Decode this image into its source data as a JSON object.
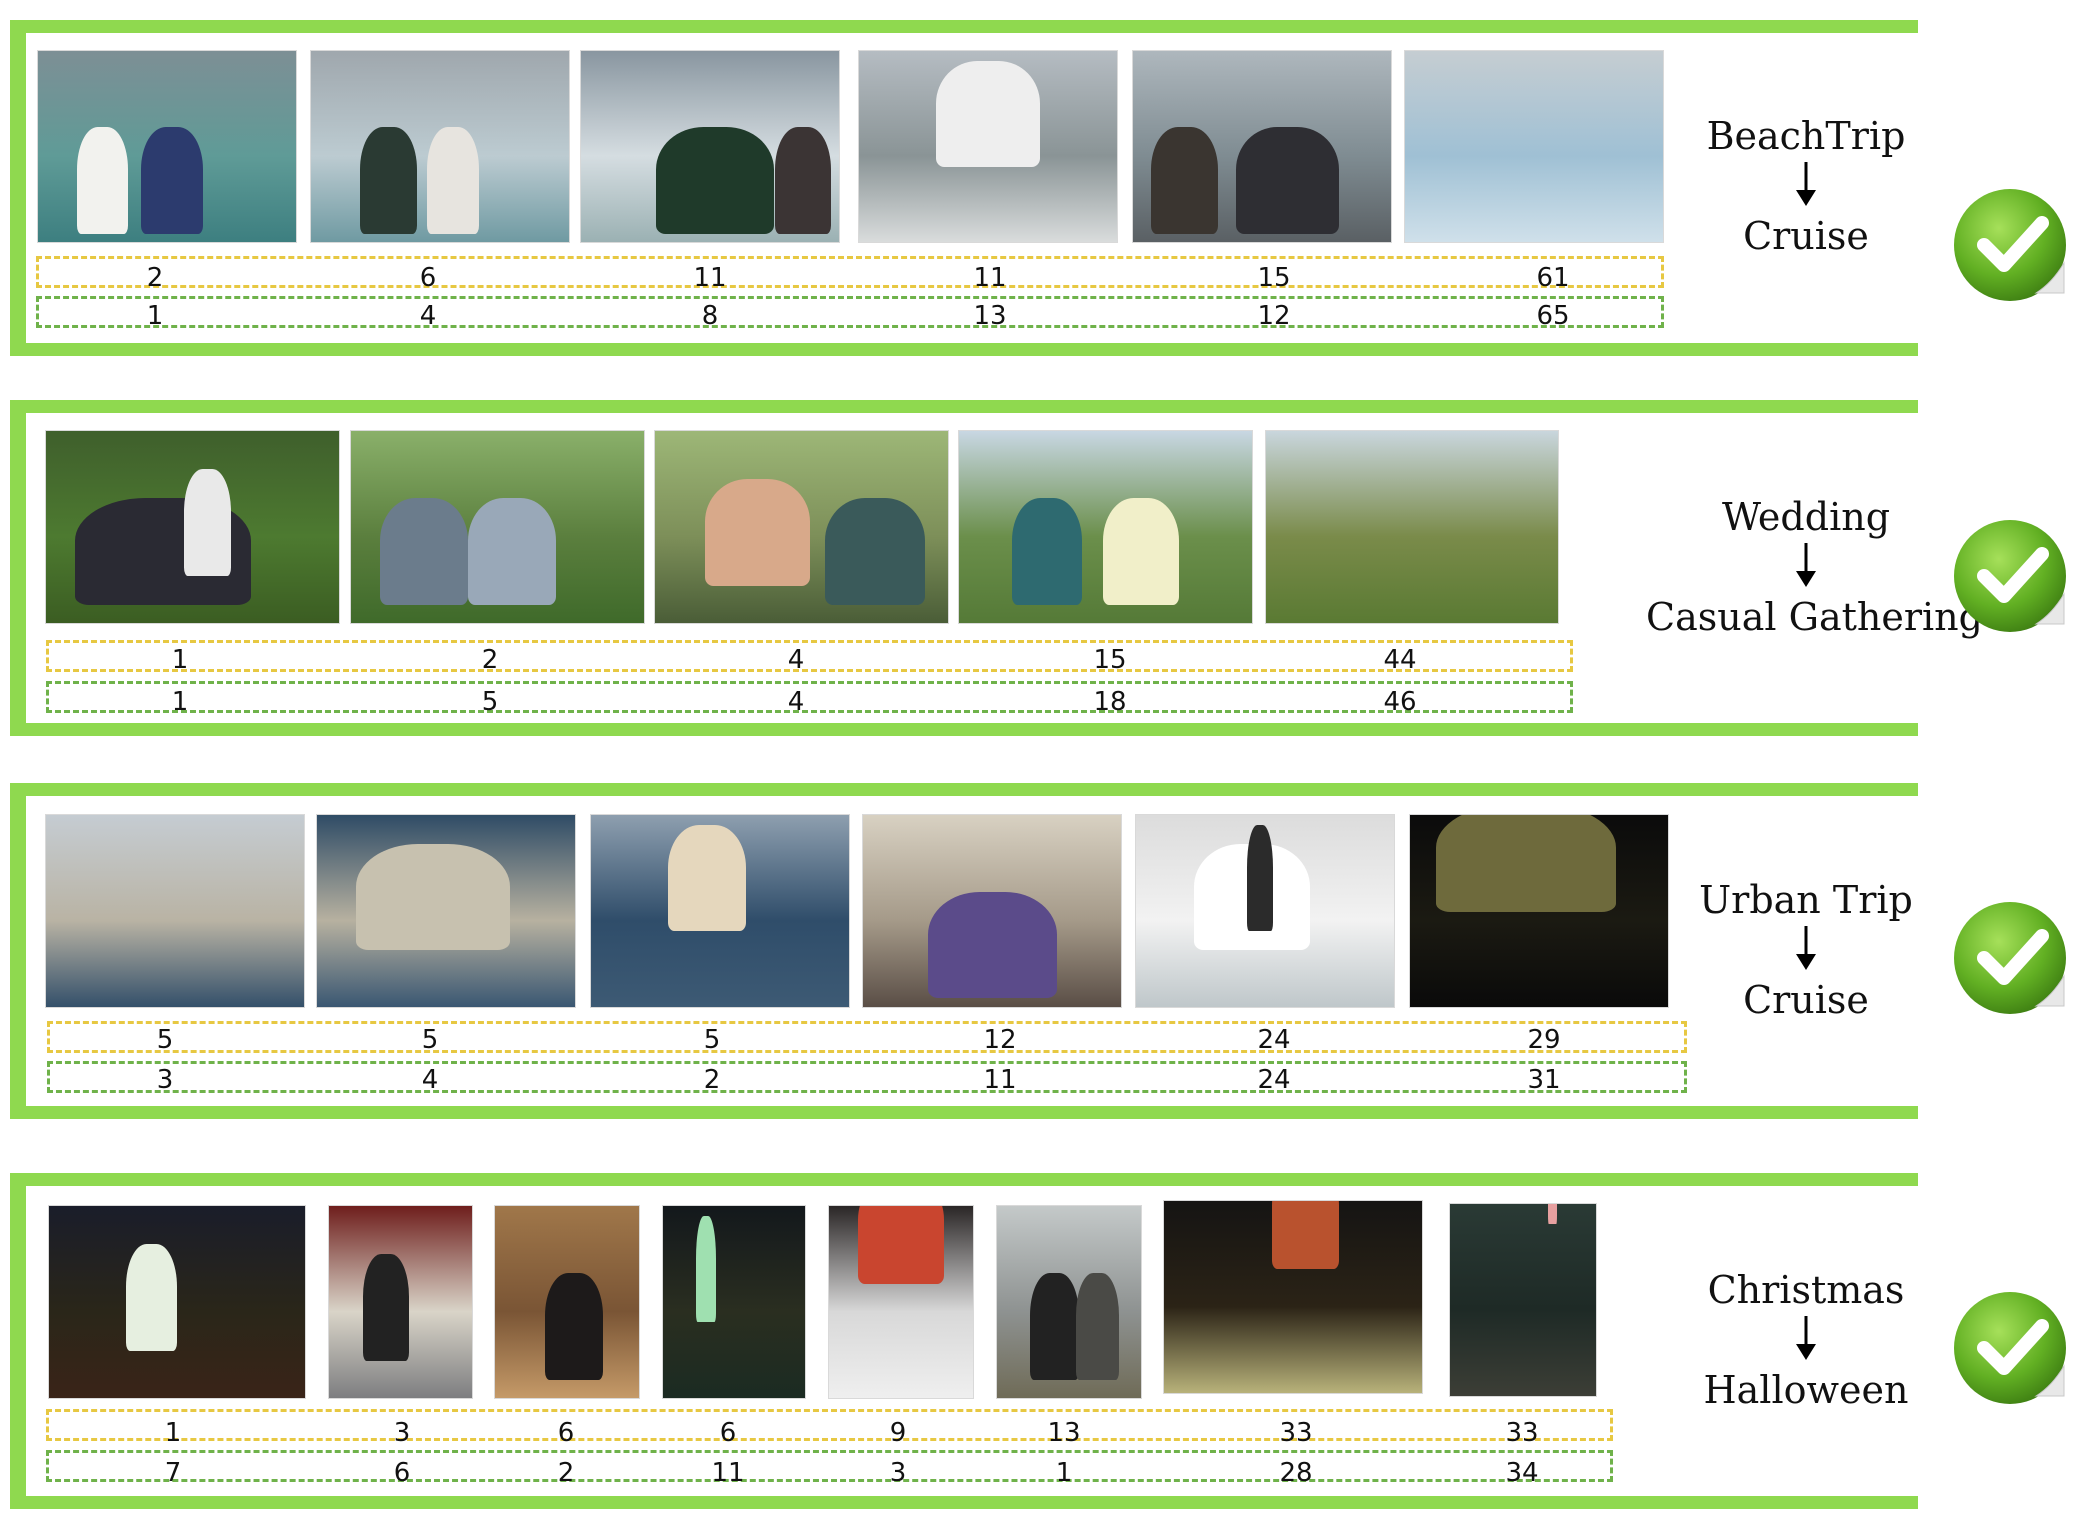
{
  "panels": [
    {
      "event_from": "BeachTrip",
      "event_to": "Cruise",
      "photos": [
        "glacier-couple",
        "glacier-couple-2",
        "woman-sunglasses",
        "cruise-ship-deck",
        "deck-crowd",
        "glacier-ice"
      ],
      "predicted_ranks": [
        "2",
        "6",
        "11",
        "11",
        "15",
        "61"
      ],
      "true_ranks": [
        "1",
        "4",
        "8",
        "13",
        "12",
        "65"
      ]
    },
    {
      "event_from": "Wedding",
      "event_to": "Casual Gathering",
      "photos": [
        "group-on-grass",
        "women-in-park",
        "two-women-closeup",
        "women-on-lawn",
        "park-trees"
      ],
      "predicted_ranks": [
        "1",
        "2",
        "4",
        "15",
        "44"
      ],
      "true_ranks": [
        "1",
        "5",
        "4",
        "18",
        "46"
      ]
    },
    {
      "event_from": "Urban Trip",
      "event_to": "Cruise",
      "photos": [
        "harbor-town",
        "pier-lighthouse",
        "harbor-building",
        "woman-cafeteria",
        "cat-in-sink",
        "blurry-night"
      ],
      "predicted_ranks": [
        "5",
        "5",
        "5",
        "12",
        "24",
        "29"
      ],
      "true_ranks": [
        "3",
        "4",
        "2",
        "11",
        "24",
        "31"
      ]
    },
    {
      "event_from": "Christmas",
      "event_to": "Halloween",
      "photos": [
        "ghost-yard",
        "skeleton-costume",
        "woman-kitchen",
        "yard-decor-night",
        "candy-bowl",
        "couple-costumes",
        "dark-fire",
        "dark-tree-lights"
      ],
      "predicted_ranks": [
        "1",
        "3",
        "6",
        "6",
        "9",
        "13",
        "33",
        "33"
      ],
      "true_ranks": [
        "7",
        "6",
        "2",
        "11",
        "3",
        "1",
        "28",
        "34"
      ]
    }
  ],
  "colors": {
    "frame": "#8fd94f",
    "predicted_row": "#e7c842",
    "true_row": "#6fb24a",
    "check": "#62b023"
  },
  "icons": {
    "arrow": "arrow-down-icon",
    "check": "check-badge-icon"
  }
}
